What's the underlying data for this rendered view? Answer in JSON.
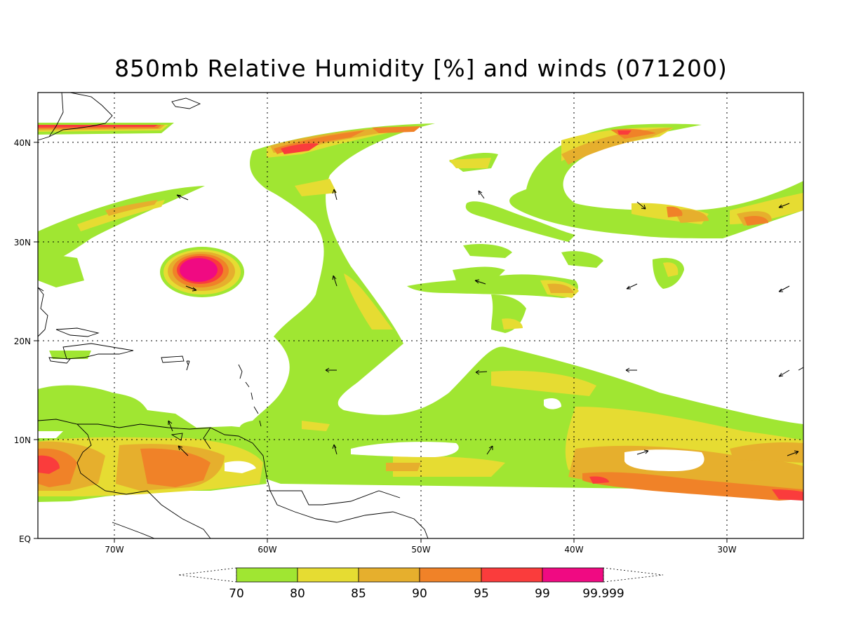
{
  "title": "850mb Relative Humidity [%] and winds (071200)",
  "colors": {
    "c70": "#a0e632",
    "c80": "#e6dc32",
    "c85": "#e6af2d",
    "c90": "#f08228",
    "c95": "#fa3c3c",
    "c99": "#f00a82"
  },
  "lat_labels": [
    "40N",
    "30N",
    "20N",
    "10N",
    "EQ"
  ],
  "lon_labels": [
    "70W",
    "60W",
    "50W",
    "40W",
    "30W"
  ],
  "legend": {
    "values": [
      "70",
      "80",
      "85",
      "90",
      "95",
      "99",
      "99.999"
    ]
  }
}
